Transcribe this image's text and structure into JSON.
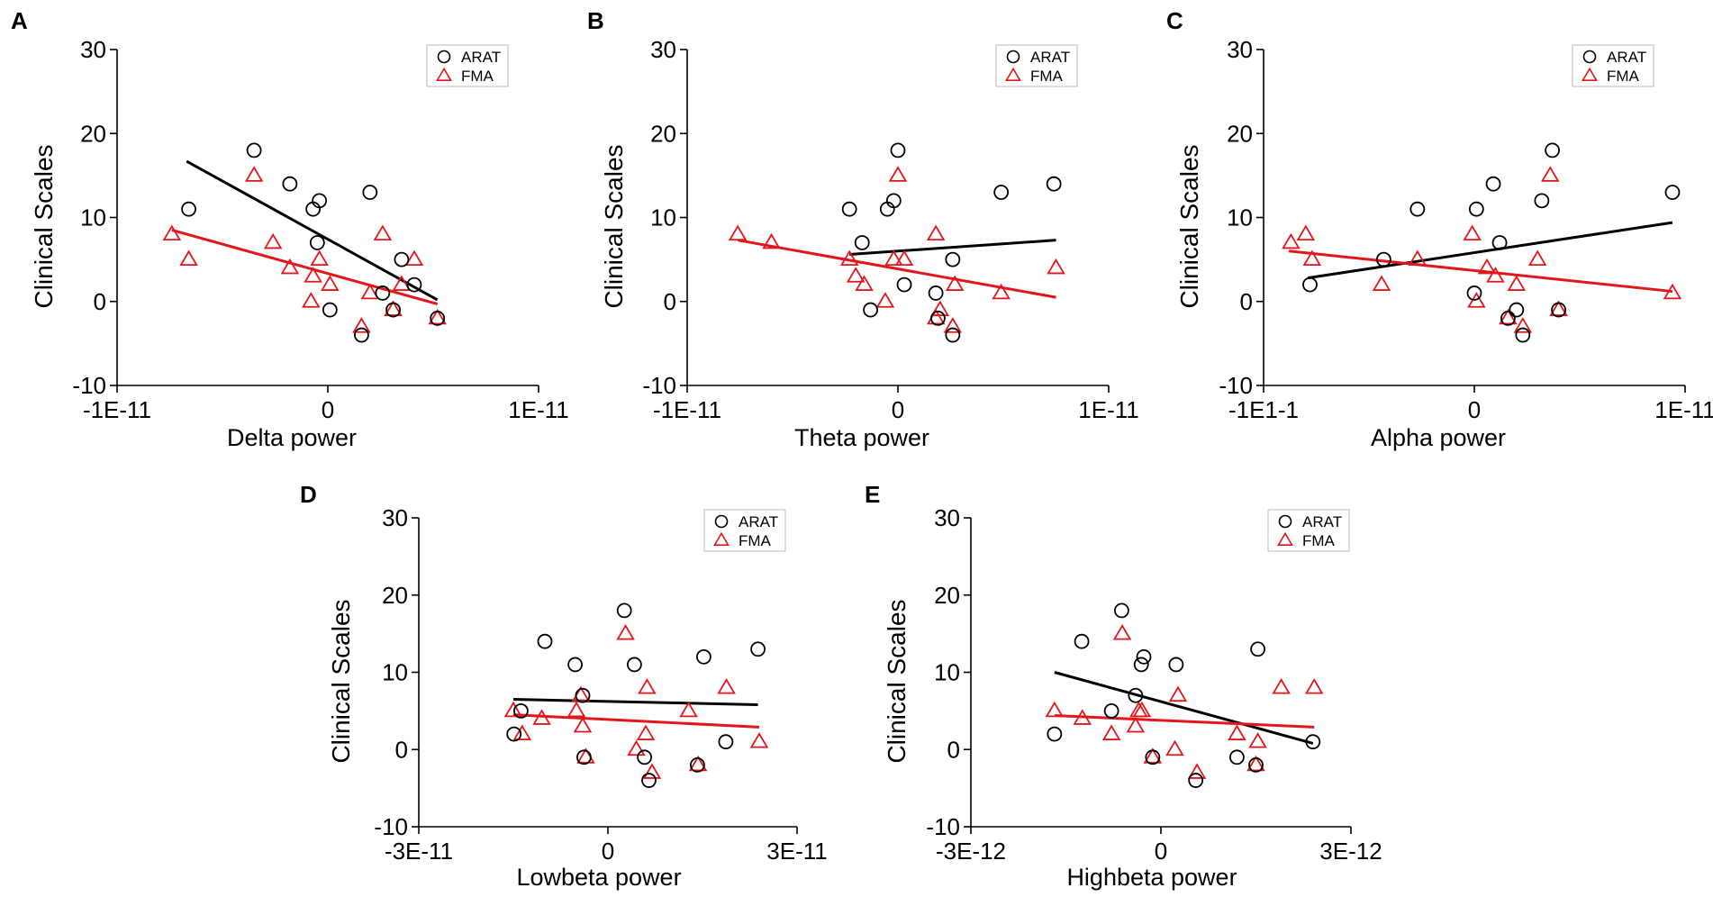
{
  "colors": {
    "arat": "#000000",
    "fma": "#e3171b",
    "axis": "#000000"
  },
  "chart_data": [
    {
      "type": "scatter",
      "panel": "A",
      "xlabel": "Delta power",
      "ylabel": "Clinical Scales",
      "xlim": [
        -1.0,
        1.0
      ],
      "ylim": [
        -10,
        30
      ],
      "xticks": [
        {
          "v": -1.0,
          "label": "-1E-11"
        },
        {
          "v": 0,
          "label": "0"
        },
        {
          "v": 1.0,
          "label": "1E-11"
        }
      ],
      "yticks": [
        {
          "v": -10,
          "label": "-10"
        },
        {
          "v": 0,
          "label": "0"
        },
        {
          "v": 10,
          "label": "10"
        },
        {
          "v": 20,
          "label": "20"
        },
        {
          "v": 30,
          "label": "30"
        }
      ],
      "x_unit": "1E-11",
      "legend": {
        "position": "top-right",
        "entries": [
          "ARAT",
          "FMA"
        ]
      },
      "series": [
        {
          "name": "ARAT",
          "marker": "circle",
          "color": "#000000",
          "points": [
            [
              -0.66,
              11
            ],
            [
              -0.35,
              18
            ],
            [
              -0.18,
              14
            ],
            [
              -0.07,
              11
            ],
            [
              -0.04,
              12
            ],
            [
              -0.05,
              7
            ],
            [
              0.01,
              -1
            ],
            [
              0.2,
              13
            ],
            [
              0.26,
              1
            ],
            [
              0.31,
              -1
            ],
            [
              0.35,
              5
            ],
            [
              0.41,
              2
            ],
            [
              0.52,
              -2
            ],
            [
              0.16,
              -4
            ]
          ],
          "fit": [
            [
              -0.67,
              16.7
            ],
            [
              0.52,
              0.2
            ]
          ]
        },
        {
          "name": "FMA",
          "marker": "triangle",
          "color": "#e3171b",
          "points": [
            [
              -0.74,
              8
            ],
            [
              -0.66,
              5
            ],
            [
              -0.35,
              15
            ],
            [
              -0.26,
              7
            ],
            [
              -0.18,
              4
            ],
            [
              -0.07,
              3
            ],
            [
              -0.08,
              0
            ],
            [
              -0.04,
              5
            ],
            [
              0.01,
              2
            ],
            [
              0.16,
              -3
            ],
            [
              0.2,
              1
            ],
            [
              0.26,
              8
            ],
            [
              0.31,
              -1
            ],
            [
              0.35,
              2
            ],
            [
              0.41,
              5
            ],
            [
              0.52,
              -2
            ]
          ],
          "fit": [
            [
              -0.74,
              8.5
            ],
            [
              0.52,
              -0.3
            ]
          ]
        }
      ]
    },
    {
      "type": "scatter",
      "panel": "B",
      "xlabel": "Theta power",
      "ylabel": "Clinical Scales",
      "xlim": [
        -1.0,
        1.0
      ],
      "ylim": [
        -10,
        30
      ],
      "xticks": [
        {
          "v": -1.0,
          "label": "-1E-11"
        },
        {
          "v": 0,
          "label": "0"
        },
        {
          "v": 1.0,
          "label": "1E-11"
        }
      ],
      "yticks": [
        {
          "v": -10,
          "label": "-10"
        },
        {
          "v": 0,
          "label": "0"
        },
        {
          "v": 10,
          "label": "10"
        },
        {
          "v": 20,
          "label": "20"
        },
        {
          "v": 30,
          "label": "30"
        }
      ],
      "x_unit": "1E-11",
      "legend": {
        "position": "top-right",
        "entries": [
          "ARAT",
          "FMA"
        ]
      },
      "series": [
        {
          "name": "ARAT",
          "marker": "circle",
          "color": "#000000",
          "points": [
            [
              -0.23,
              11
            ],
            [
              -0.17,
              7
            ],
            [
              -0.13,
              -1
            ],
            [
              -0.05,
              11
            ],
            [
              -0.02,
              12
            ],
            [
              0.0,
              18
            ],
            [
              0.03,
              2
            ],
            [
              0.18,
              1
            ],
            [
              0.19,
              -2
            ],
            [
              0.26,
              5
            ],
            [
              0.26,
              -4
            ],
            [
              0.49,
              13
            ],
            [
              0.74,
              14
            ]
          ],
          "fit": [
            [
              -0.23,
              5.6
            ],
            [
              0.75,
              7.3
            ]
          ]
        },
        {
          "name": "FMA",
          "marker": "triangle",
          "color": "#e3171b",
          "points": [
            [
              -0.76,
              8
            ],
            [
              -0.6,
              7
            ],
            [
              -0.23,
              5
            ],
            [
              -0.2,
              3
            ],
            [
              -0.16,
              2
            ],
            [
              -0.06,
              0
            ],
            [
              -0.02,
              5
            ],
            [
              0.0,
              15
            ],
            [
              0.03,
              5
            ],
            [
              0.18,
              8
            ],
            [
              0.18,
              -2
            ],
            [
              0.2,
              -1
            ],
            [
              0.26,
              -3
            ],
            [
              0.27,
              2
            ],
            [
              0.49,
              1
            ],
            [
              0.75,
              4
            ]
          ],
          "fit": [
            [
              -0.76,
              7.3
            ],
            [
              0.75,
              0.5
            ]
          ]
        }
      ]
    },
    {
      "type": "scatter",
      "panel": "C",
      "xlabel": "Alpha power",
      "ylabel": "Clinical Scales",
      "xlim": [
        -1.0,
        1.0
      ],
      "ylim": [
        -10,
        30
      ],
      "xticks": [
        {
          "v": -1.0,
          "label": "-1E1-1"
        },
        {
          "v": 0,
          "label": "0"
        },
        {
          "v": 1.0,
          "label": "1E-11"
        }
      ],
      "yticks": [
        {
          "v": -10,
          "label": "-10"
        },
        {
          "v": 0,
          "label": "0"
        },
        {
          "v": 10,
          "label": "10"
        },
        {
          "v": 20,
          "label": "20"
        },
        {
          "v": 30,
          "label": "30"
        }
      ],
      "x_unit": "1E-11",
      "legend": {
        "position": "top-right",
        "entries": [
          "ARAT",
          "FMA"
        ]
      },
      "series": [
        {
          "name": "ARAT",
          "marker": "circle",
          "color": "#000000",
          "points": [
            [
              -0.78,
              2
            ],
            [
              -0.43,
              5
            ],
            [
              -0.27,
              11
            ],
            [
              0.01,
              11
            ],
            [
              0.0,
              1
            ],
            [
              0.09,
              14
            ],
            [
              0.12,
              7
            ],
            [
              0.16,
              -2
            ],
            [
              0.2,
              -1
            ],
            [
              0.23,
              -4
            ],
            [
              0.32,
              12
            ],
            [
              0.37,
              18
            ],
            [
              0.4,
              -1
            ],
            [
              0.94,
              13
            ]
          ],
          "fit": [
            [
              -0.79,
              2.8
            ],
            [
              0.94,
              9.4
            ]
          ]
        },
        {
          "name": "FMA",
          "marker": "triangle",
          "color": "#e3171b",
          "points": [
            [
              -0.87,
              7
            ],
            [
              -0.8,
              8
            ],
            [
              -0.77,
              5
            ],
            [
              -0.44,
              2
            ],
            [
              -0.27,
              5
            ],
            [
              -0.01,
              8
            ],
            [
              0.01,
              0
            ],
            [
              0.06,
              4
            ],
            [
              0.1,
              3
            ],
            [
              0.16,
              -2
            ],
            [
              0.2,
              2
            ],
            [
              0.23,
              -3
            ],
            [
              0.3,
              5
            ],
            [
              0.36,
              15
            ],
            [
              0.4,
              -1
            ],
            [
              0.94,
              1
            ]
          ],
          "fit": [
            [
              -0.88,
              6.0
            ],
            [
              0.94,
              1.2
            ]
          ]
        }
      ]
    },
    {
      "type": "scatter",
      "panel": "D",
      "xlabel": "Lowbeta power",
      "ylabel": "Clinical Scales",
      "xlim": [
        -3.0,
        3.0
      ],
      "ylim": [
        -10,
        30
      ],
      "xticks": [
        {
          "v": -3.0,
          "label": "-3E-11"
        },
        {
          "v": 0,
          "label": "0"
        },
        {
          "v": 3.0,
          "label": "3E-11"
        }
      ],
      "yticks": [
        {
          "v": -10,
          "label": "-10"
        },
        {
          "v": 0,
          "label": "0"
        },
        {
          "v": 10,
          "label": "10"
        },
        {
          "v": 20,
          "label": "20"
        },
        {
          "v": 30,
          "label": "30"
        }
      ],
      "x_unit": "1E-11",
      "legend": {
        "position": "top-right",
        "entries": [
          "ARAT",
          "FMA"
        ]
      },
      "series": [
        {
          "name": "ARAT",
          "marker": "circle",
          "color": "#000000",
          "points": [
            [
              -1.49,
              2
            ],
            [
              -1.38,
              5
            ],
            [
              -1.0,
              14
            ],
            [
              -0.52,
              11
            ],
            [
              -0.4,
              7
            ],
            [
              -0.38,
              -1
            ],
            [
              0.26,
              18
            ],
            [
              0.42,
              11
            ],
            [
              0.58,
              -1
            ],
            [
              0.65,
              -4
            ],
            [
              1.42,
              -2
            ],
            [
              1.52,
              12
            ],
            [
              1.87,
              1
            ],
            [
              2.38,
              13
            ]
          ],
          "fit": [
            [
              -1.5,
              6.5
            ],
            [
              2.38,
              5.8
            ]
          ]
        },
        {
          "name": "FMA",
          "marker": "triangle",
          "color": "#e3171b",
          "points": [
            [
              -1.5,
              5
            ],
            [
              -1.36,
              2
            ],
            [
              -1.05,
              4
            ],
            [
              -0.5,
              5
            ],
            [
              -0.43,
              7
            ],
            [
              -0.4,
              3
            ],
            [
              -0.35,
              -1
            ],
            [
              0.28,
              15
            ],
            [
              0.45,
              0
            ],
            [
              0.6,
              2
            ],
            [
              0.62,
              8
            ],
            [
              0.7,
              -3
            ],
            [
              1.28,
              5
            ],
            [
              1.43,
              -2
            ],
            [
              1.88,
              8
            ],
            [
              2.4,
              1
            ]
          ],
          "fit": [
            [
              -1.5,
              4.5
            ],
            [
              2.4,
              2.9
            ]
          ]
        }
      ]
    },
    {
      "type": "scatter",
      "panel": "E",
      "xlabel": "Highbeta power",
      "ylabel": "Clinical Scales",
      "xlim": [
        -3.0,
        3.0
      ],
      "ylim": [
        -10,
        30
      ],
      "xticks": [
        {
          "v": -3.0,
          "label": "-3E-12"
        },
        {
          "v": 0,
          "label": "0"
        },
        {
          "v": 3.0,
          "label": "3E-12"
        }
      ],
      "yticks": [
        {
          "v": -10,
          "label": "-10"
        },
        {
          "v": 0,
          "label": "0"
        },
        {
          "v": 10,
          "label": "10"
        },
        {
          "v": 20,
          "label": "20"
        },
        {
          "v": 30,
          "label": "30"
        }
      ],
      "x_unit": "1E-12",
      "legend": {
        "position": "top-right",
        "entries": [
          "ARAT",
          "FMA"
        ]
      },
      "series": [
        {
          "name": "ARAT",
          "marker": "circle",
          "color": "#000000",
          "points": [
            [
              -1.68,
              2
            ],
            [
              -1.25,
              14
            ],
            [
              -0.78,
              5
            ],
            [
              -0.62,
              18
            ],
            [
              -0.4,
              7
            ],
            [
              -0.31,
              11
            ],
            [
              -0.27,
              12
            ],
            [
              -0.13,
              -1
            ],
            [
              0.24,
              11
            ],
            [
              0.55,
              -4
            ],
            [
              1.2,
              -1
            ],
            [
              1.5,
              -2
            ],
            [
              1.53,
              13
            ],
            [
              2.4,
              1
            ]
          ],
          "fit": [
            [
              -1.68,
              10.0
            ],
            [
              2.4,
              0.8
            ]
          ]
        },
        {
          "name": "FMA",
          "marker": "triangle",
          "color": "#e3171b",
          "points": [
            [
              -1.68,
              5
            ],
            [
              -1.24,
              4
            ],
            [
              -0.78,
              2
            ],
            [
              -0.61,
              15
            ],
            [
              -0.4,
              3
            ],
            [
              -0.35,
              5
            ],
            [
              -0.3,
              5
            ],
            [
              -0.13,
              -1
            ],
            [
              0.22,
              0
            ],
            [
              0.27,
              7
            ],
            [
              0.57,
              -3
            ],
            [
              1.2,
              2
            ],
            [
              1.5,
              -2
            ],
            [
              1.53,
              1
            ],
            [
              1.9,
              8
            ],
            [
              2.42,
              8
            ]
          ],
          "fit": [
            [
              -1.68,
              4.4
            ],
            [
              2.42,
              2.9
            ]
          ]
        }
      ]
    }
  ]
}
